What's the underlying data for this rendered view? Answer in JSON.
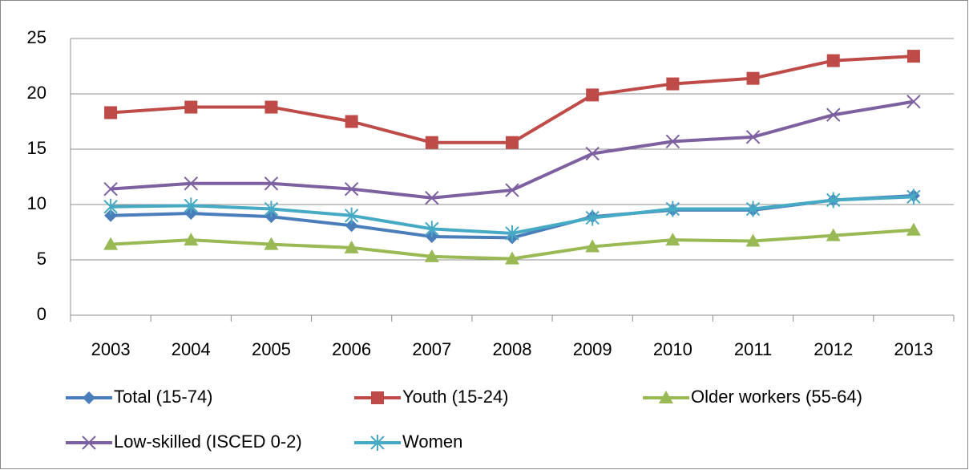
{
  "chart_data": {
    "type": "line",
    "categories": [
      "2003",
      "2004",
      "2005",
      "2006",
      "2007",
      "2008",
      "2009",
      "2010",
      "2011",
      "2012",
      "2013"
    ],
    "series": [
      {
        "name": "Total (15-74)",
        "color": "#4a7ebb",
        "marker": "diamond",
        "values": [
          9.0,
          9.2,
          8.9,
          8.1,
          7.1,
          7.0,
          8.9,
          9.5,
          9.5,
          10.4,
          10.8
        ]
      },
      {
        "name": "Youth (15-24)",
        "color": "#be4b48",
        "marker": "square",
        "values": [
          18.3,
          18.8,
          18.8,
          17.5,
          15.6,
          15.6,
          19.9,
          20.9,
          21.4,
          23.0,
          23.4
        ]
      },
      {
        "name": "Older workers (55-64)",
        "color": "#98b954",
        "marker": "triangle",
        "values": [
          6.4,
          6.8,
          6.4,
          6.1,
          5.3,
          5.1,
          6.2,
          6.8,
          6.7,
          7.2,
          7.7
        ]
      },
      {
        "name": "Low-skilled (ISCED 0-2)",
        "color": "#7d60a0",
        "marker": "x",
        "values": [
          11.4,
          11.9,
          11.9,
          11.4,
          10.6,
          11.3,
          14.6,
          15.7,
          16.1,
          18.1,
          19.3
        ]
      },
      {
        "name": "Women",
        "color": "#46aac5",
        "marker": "star",
        "values": [
          9.8,
          9.9,
          9.6,
          9.0,
          7.8,
          7.4,
          8.8,
          9.6,
          9.6,
          10.4,
          10.7
        ]
      }
    ],
    "ylim": [
      0,
      25
    ],
    "yticks": [
      0,
      5,
      10,
      15,
      20,
      25
    ],
    "grid": true,
    "legend": "bottom"
  }
}
